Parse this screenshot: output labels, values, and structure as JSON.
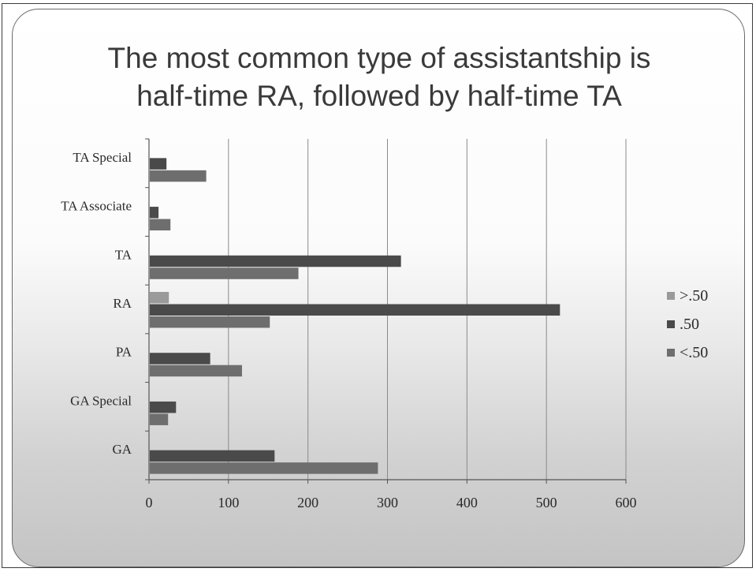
{
  "chart_data": {
    "type": "bar",
    "orientation": "horizontal",
    "title": "The most common type of assistantship is half-time RA, followed by half-time TA",
    "title_lines": [
      "The most common type of assistantship is",
      "half-time RA, followed by half-time TA"
    ],
    "categories": [
      "TA Special",
      "TA Associate",
      "TA",
      "RA",
      "PA",
      "GA Special",
      "GA"
    ],
    "series": [
      {
        "name": ">.50",
        "color": "#9a9a9a",
        "values": [
          0,
          0,
          0,
          25,
          0,
          0,
          0
        ]
      },
      {
        "name": ".50",
        "color": "#4a4a4a",
        "values": [
          22,
          12,
          317,
          517,
          77,
          34,
          158
        ]
      },
      {
        "name": "<.50",
        "color": "#6e6e6e",
        "values": [
          72,
          27,
          188,
          152,
          117,
          24,
          288
        ]
      }
    ],
    "xlim": [
      0,
      600
    ],
    "xticks": [
      0,
      100,
      200,
      300,
      400,
      500,
      600
    ],
    "grid": true,
    "legend_position": "right"
  }
}
